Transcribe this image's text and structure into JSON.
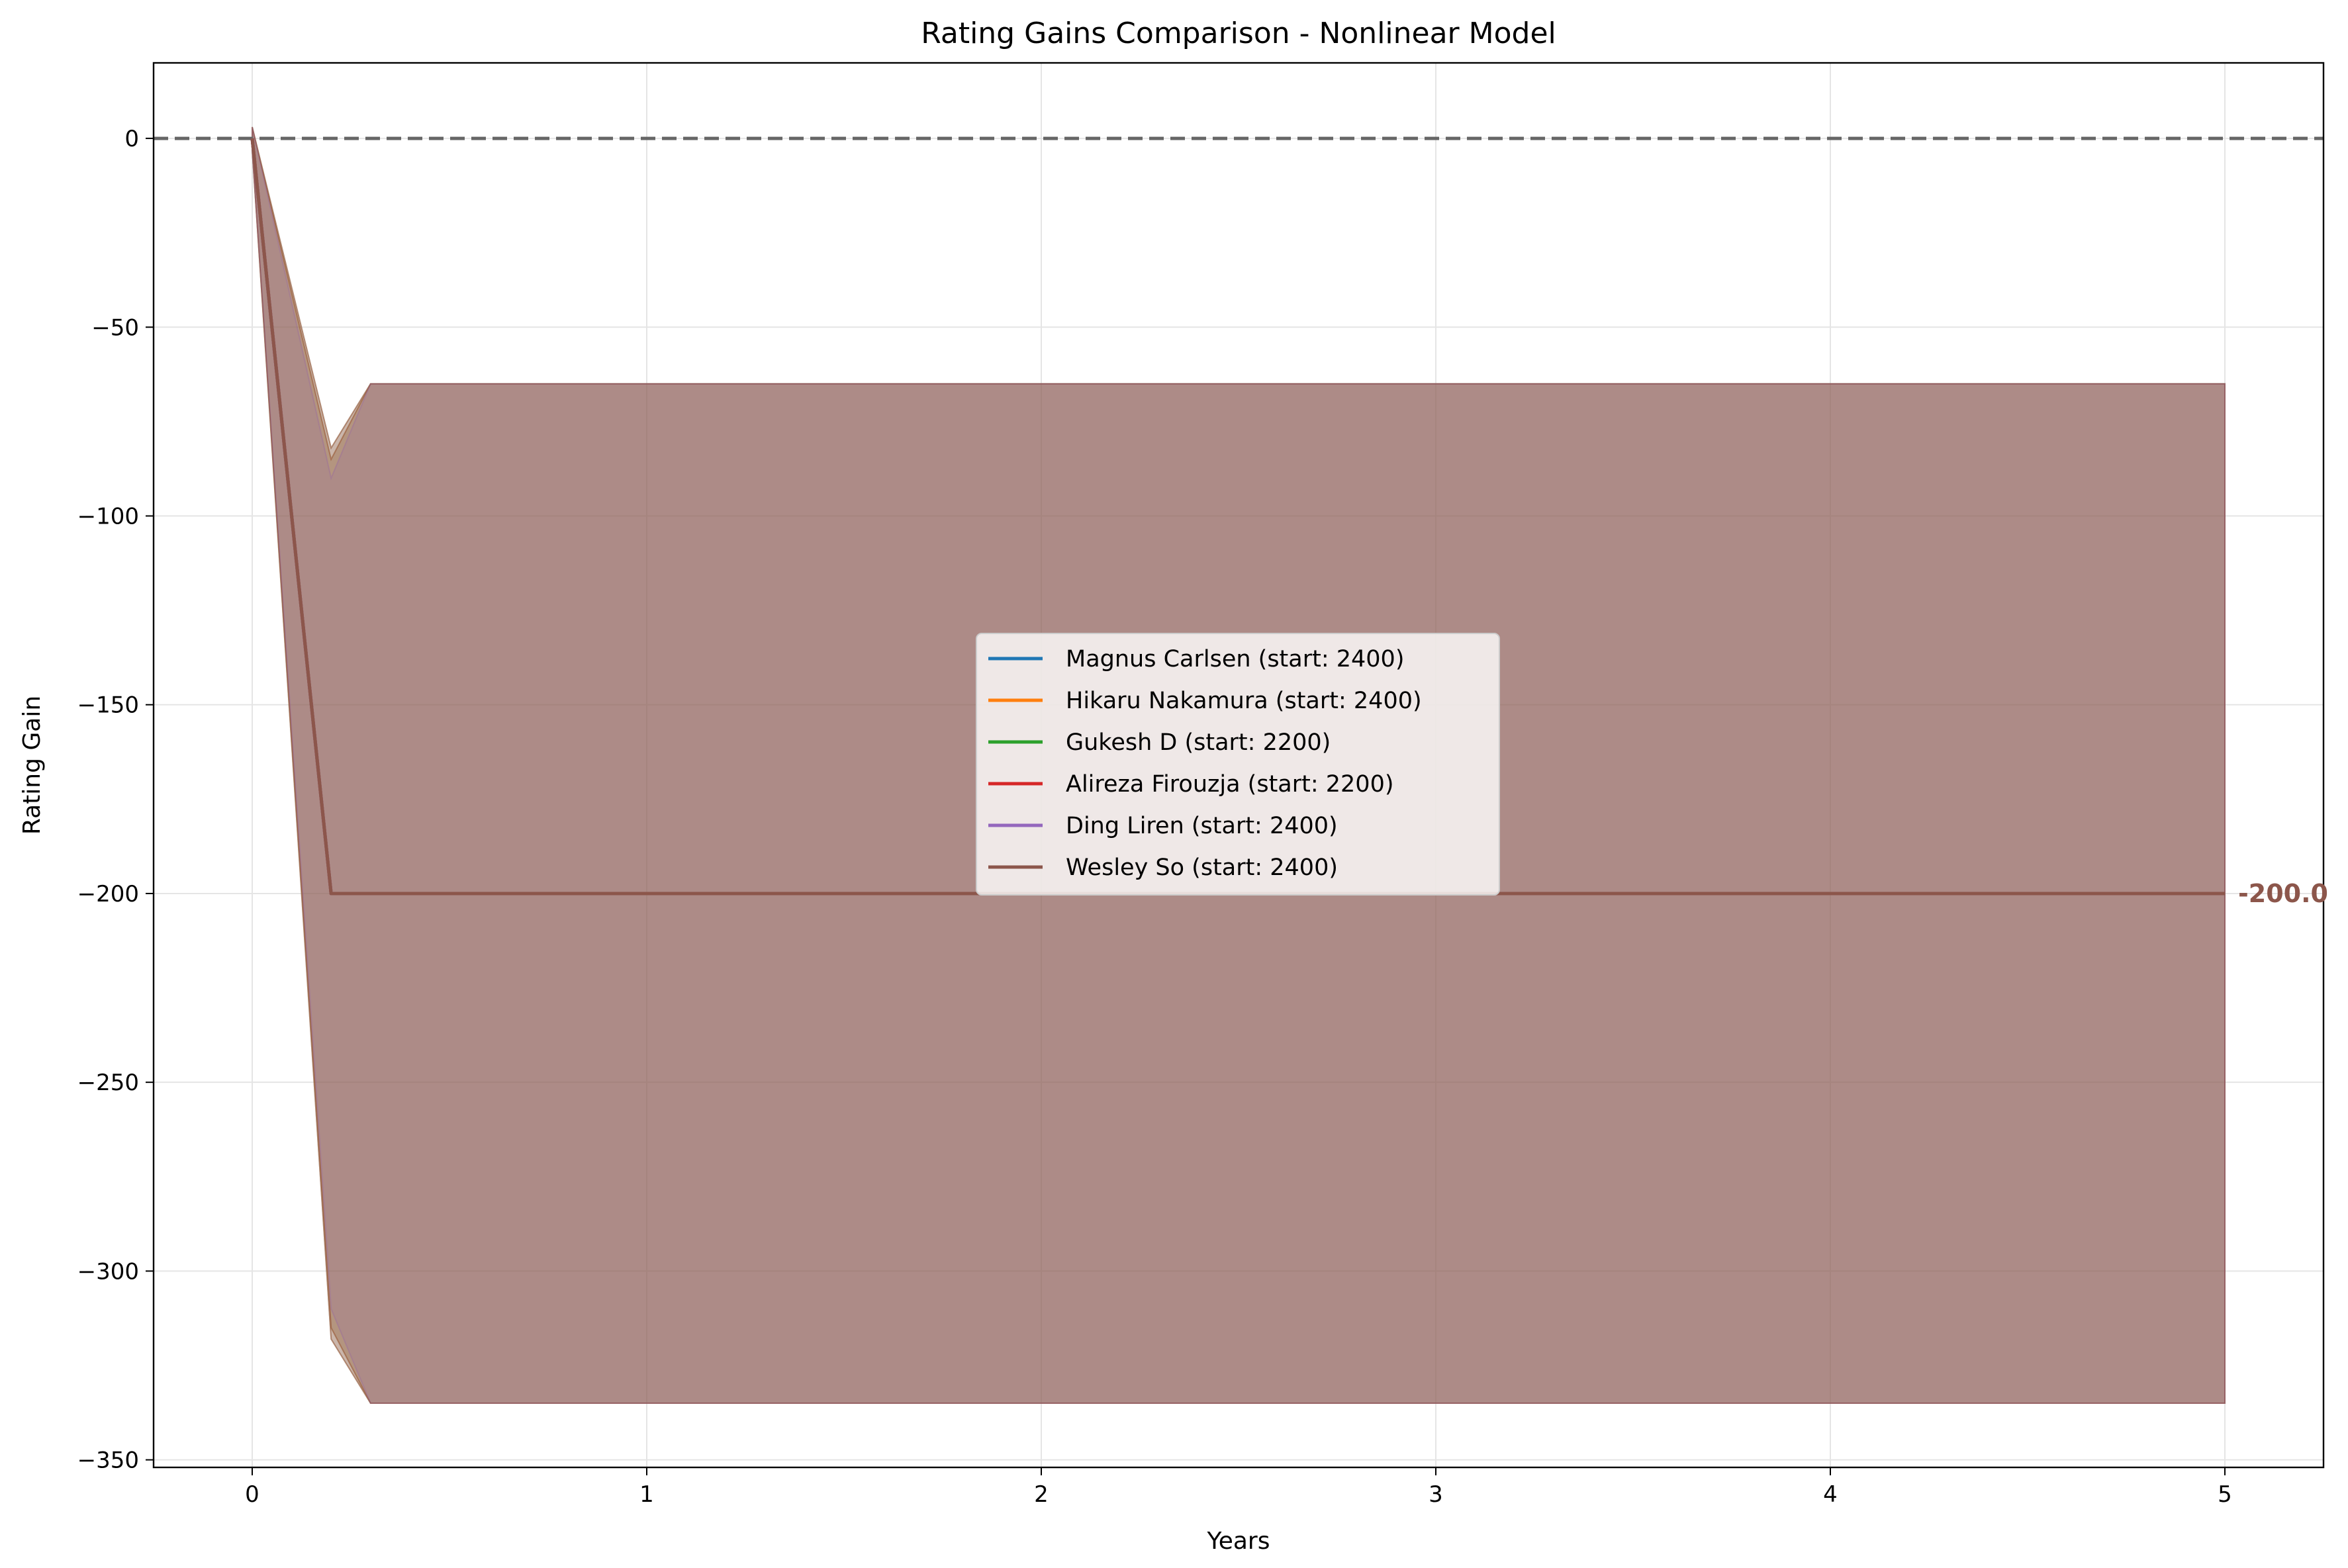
{
  "chart_data": {
    "type": "line",
    "title": "Rating Gains Comparison - Nonlinear Model",
    "xlabel": "Years",
    "ylabel": "Rating Gain",
    "xlim": [
      -0.25,
      5.25
    ],
    "ylim": [
      -352,
      20
    ],
    "xticks": [
      0,
      1,
      2,
      3,
      4,
      5
    ],
    "yticks": [
      0,
      -50,
      -100,
      -150,
      -200,
      -250,
      -300,
      -350
    ],
    "xtick_labels": [
      "0",
      "1",
      "2",
      "3",
      "4",
      "5"
    ],
    "ytick_labels": [
      "0",
      "−50",
      "−100",
      "−150",
      "−200",
      "−250",
      "−300",
      "−350"
    ],
    "grid": true,
    "legend_position": "center",
    "reference_line": {
      "y": 0,
      "style": "dashed",
      "color": "#666666"
    },
    "x": [
      0,
      0.2,
      0.3,
      0.5,
      1,
      1.5,
      2,
      2.5,
      3,
      3.5,
      4,
      4.5,
      5
    ],
    "series": [
      {
        "name": "Magnus Carlsen (start: 2400)",
        "color": "#1f77b4",
        "values": [
          0,
          -200,
          -200,
          -200,
          -200,
          -200,
          -200,
          -200,
          -200,
          -200,
          -200,
          -200,
          -200
        ],
        "band_upper": [
          3,
          -82,
          -65,
          -65,
          -65,
          -65,
          -65,
          -65,
          -65,
          -65,
          -65,
          -65,
          -65
        ],
        "band_lower": [
          -3,
          -318,
          -335,
          -335,
          -335,
          -335,
          -335,
          -335,
          -335,
          -335,
          -335,
          -335,
          -335
        ]
      },
      {
        "name": "Hikaru Nakamura (start: 2400)",
        "color": "#ff7f0e",
        "values": [
          0,
          -200,
          -200,
          -200,
          -200,
          -200,
          -200,
          -200,
          -200,
          -200,
          -200,
          -200,
          -200
        ],
        "band_upper": [
          3,
          -82,
          -65,
          -65,
          -65,
          -65,
          -65,
          -65,
          -65,
          -65,
          -65,
          -65,
          -65
        ],
        "band_lower": [
          -3,
          -318,
          -335,
          -335,
          -335,
          -335,
          -335,
          -335,
          -335,
          -335,
          -335,
          -335,
          -335
        ]
      },
      {
        "name": "Gukesh D (start: 2200)",
        "color": "#2ca02c",
        "values": [
          0,
          -200,
          -200,
          -200,
          -200,
          -200,
          -200,
          -200,
          -200,
          -200,
          -200,
          -200,
          -200
        ],
        "band_upper": [
          3,
          -85,
          -65,
          -65,
          -65,
          -65,
          -65,
          -65,
          -65,
          -65,
          -65,
          -65,
          -65
        ],
        "band_lower": [
          -3,
          -315,
          -335,
          -335,
          -335,
          -335,
          -335,
          -335,
          -335,
          -335,
          -335,
          -335,
          -335
        ]
      },
      {
        "name": "Alireza Firouzja (start: 2200)",
        "color": "#d62728",
        "values": [
          0,
          -200,
          -200,
          -200,
          -200,
          -200,
          -200,
          -200,
          -200,
          -200,
          -200,
          -200,
          -200
        ],
        "band_upper": [
          3,
          -85,
          -65,
          -65,
          -65,
          -65,
          -65,
          -65,
          -65,
          -65,
          -65,
          -65,
          -65
        ],
        "band_lower": [
          -3,
          -315,
          -335,
          -335,
          -335,
          -335,
          -335,
          -335,
          -335,
          -335,
          -335,
          -335,
          -335
        ]
      },
      {
        "name": "Ding Liren (start: 2400)",
        "color": "#9467bd",
        "values": [
          0,
          -200,
          -200,
          -200,
          -200,
          -200,
          -200,
          -200,
          -200,
          -200,
          -200,
          -200,
          -200
        ],
        "band_upper": [
          3,
          -90,
          -65,
          -65,
          -65,
          -65,
          -65,
          -65,
          -65,
          -65,
          -65,
          -65,
          -65
        ],
        "band_lower": [
          -3,
          -310,
          -335,
          -335,
          -335,
          -335,
          -335,
          -335,
          -335,
          -335,
          -335,
          -335,
          -335
        ]
      },
      {
        "name": "Wesley So (start: 2400)",
        "color": "#8c564b",
        "values": [
          0,
          -200,
          -200,
          -200,
          -200,
          -200,
          -200,
          -200,
          -200,
          -200,
          -200,
          -200,
          -200
        ],
        "band_upper": [
          3,
          -82,
          -65,
          -65,
          -65,
          -65,
          -65,
          -65,
          -65,
          -65,
          -65,
          -65,
          -65
        ],
        "band_lower": [
          -3,
          -318,
          -335,
          -335,
          -335,
          -335,
          -335,
          -335,
          -335,
          -335,
          -335,
          -335,
          -335
        ]
      }
    ],
    "annotations": [
      {
        "text": "-200.0",
        "x": 5,
        "y": -200,
        "color": "#8c564b"
      }
    ]
  }
}
